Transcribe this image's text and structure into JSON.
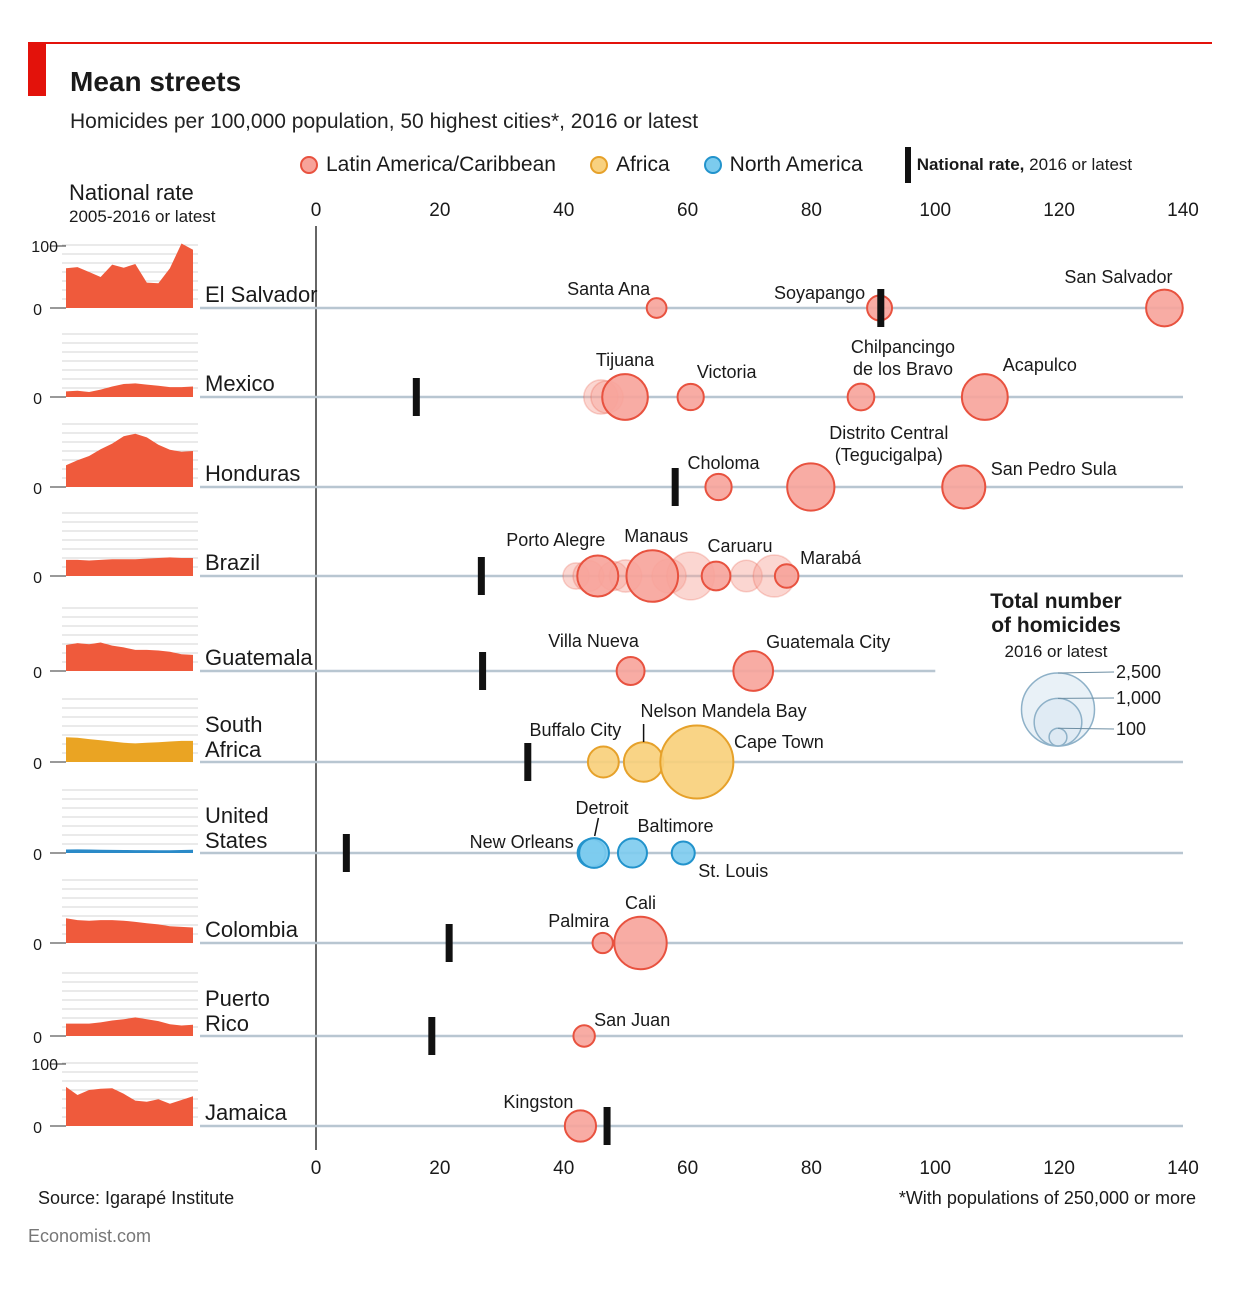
{
  "header": {
    "title": "Mean streets",
    "subtitle": "Homicides per 100,000 population, 50 highest cities*, 2016 or latest"
  },
  "legend": {
    "items": [
      {
        "label": "Latin America/Caribbean",
        "color": "#f26b5b"
      },
      {
        "label": "Africa",
        "color": "#f3b63a"
      },
      {
        "label": "North America",
        "color": "#3ab0e2"
      }
    ],
    "national_bold": "National rate,",
    "national_rest": " 2016 or latest"
  },
  "national_rate_header": {
    "title": "National rate",
    "years": "2005-2016 or latest"
  },
  "footer": {
    "source": "Source: Igarapé Institute",
    "footnote": "*With populations of 250,000 or more",
    "brand": "Economist.com"
  },
  "size_legend": {
    "title_line1": "Total number",
    "title_line2": "of homicides",
    "subtitle": "2016 or latest",
    "values": [
      {
        "label": "2,500",
        "homicides": 2500
      },
      {
        "label": "1,000",
        "homicides": 1000
      },
      {
        "label": "100",
        "homicides": 100
      }
    ]
  },
  "chart_data": {
    "type": "scatter",
    "x_ticks": [
      "0",
      "20",
      "40",
      "60",
      "80",
      "100",
      "120",
      "140"
    ],
    "xlim": [
      0,
      140
    ],
    "spark_ticks": [
      "100",
      "0"
    ],
    "colors": {
      "latam": "#f26b5b",
      "africa": "#f3b63a",
      "namerica": "#3ab0e2",
      "spark_latam": "#ef5a3c",
      "spark_africa": "#eaa423",
      "spark_na": "#2a8ac8"
    },
    "countries": [
      {
        "name": [
          "El Salvador"
        ],
        "region": "latam",
        "national_rate": 91.2,
        "spark_top_tick": "100",
        "spark": [
          64,
          66,
          58,
          50,
          70,
          65,
          71,
          41,
          40,
          64,
          104,
          94
        ],
        "cities": [
          {
            "name": "Santa Ana",
            "rate": 55,
            "homicides": 130
          },
          {
            "name": "Soyapango",
            "rate": 91,
            "homicides": 230
          },
          {
            "name": "San Salvador",
            "rate": 137,
            "homicides": 560
          }
        ]
      },
      {
        "name": [
          "Mexico"
        ],
        "region": "latam",
        "national_rate": 16.2,
        "spark": [
          9,
          10,
          8,
          12,
          17,
          21,
          22,
          20,
          18,
          16,
          16,
          17
        ],
        "cities": [
          {
            "name": "",
            "rate": 46,
            "homicides": 480,
            "faint": true
          },
          {
            "name": "",
            "rate": 47,
            "homicides": 420,
            "faint": true
          },
          {
            "name": "Tijuana",
            "rate": 49.9,
            "homicides": 910
          },
          {
            "name": "Victoria",
            "rate": 60.5,
            "homicides": 260
          },
          {
            "name": "Chilpancingo|de los Bravo",
            "rate": 88,
            "homicides": 270
          },
          {
            "name": "Acapulco",
            "rate": 108,
            "homicides": 920
          }
        ]
      },
      {
        "name": [
          "Honduras"
        ],
        "region": "latam",
        "national_rate": 58,
        "spark": [
          35,
          43,
          50,
          61,
          70,
          82,
          86,
          80,
          68,
          60,
          57,
          58
        ],
        "cities": [
          {
            "name": "Choloma",
            "rate": 65,
            "homicides": 260
          },
          {
            "name": "Distrito Central|(Tegucigalpa)",
            "rate": 79.9,
            "homicides": 980
          },
          {
            "name": "San Pedro Sula",
            "rate": 104.6,
            "homicides": 800
          }
        ]
      },
      {
        "name": [
          "Brazil"
        ],
        "region": "latam",
        "national_rate": 26.7,
        "spark": [
          26,
          26,
          25,
          26,
          27,
          27,
          27,
          28,
          29,
          30,
          29,
          29
        ],
        "cities": [
          {
            "name": "",
            "rate": 42,
            "homicides": 260,
            "faint": true
          },
          {
            "name": "",
            "rate": 44,
            "homicides": 380,
            "faint": true
          },
          {
            "name": "Porto Alegre",
            "rate": 45.5,
            "homicides": 720
          },
          {
            "name": "",
            "rate": 48,
            "homicides": 330,
            "faint": true
          },
          {
            "name": "",
            "rate": 50,
            "homicides": 420,
            "faint": true
          },
          {
            "name": "Manaus",
            "rate": 54.3,
            "homicides": 1190
          },
          {
            "name": "",
            "rate": 57,
            "homicides": 480,
            "faint": true
          },
          {
            "name": "",
            "rate": 60.5,
            "homicides": 1000,
            "faint": true
          },
          {
            "name": "Caruaru",
            "rate": 64.6,
            "homicides": 320
          },
          {
            "name": "",
            "rate": 69.5,
            "homicides": 400,
            "faint": true
          },
          {
            "name": "",
            "rate": 74,
            "homicides": 760,
            "faint": true
          },
          {
            "name": "Marabá",
            "rate": 76,
            "homicides": 200
          }
        ]
      },
      {
        "name": [
          "Guatemala"
        ],
        "region": "latam",
        "national_rate": 26.9,
        "spark": [
          42,
          45,
          43,
          46,
          41,
          38,
          34,
          34,
          33,
          31,
          27,
          26
        ],
        "cities": [
          {
            "name": "Villa Nueva",
            "rate": 50.8,
            "homicides": 300
          },
          {
            "name": "Guatemala City",
            "rate": 70.6,
            "homicides": 670
          }
        ]
      },
      {
        "name": [
          "South",
          "Africa"
        ],
        "region": "africa",
        "national_rate": 34.2,
        "spark": [
          40,
          39,
          37,
          35,
          33,
          31,
          30,
          31,
          32,
          33,
          34,
          34
        ],
        "cities": [
          {
            "name": "Buffalo City",
            "rate": 46.4,
            "homicides": 380
          },
          {
            "name": "Nelson Mandela Bay",
            "rate": 52.9,
            "homicides": 660
          },
          {
            "name": "Cape Town",
            "rate": 61.5,
            "homicides": 2500
          }
        ]
      },
      {
        "name": [
          "United",
          "States"
        ],
        "region": "namerica",
        "national_rate": 4.9,
        "spark": [
          5.6,
          5.8,
          5.7,
          5.4,
          5.0,
          4.8,
          4.7,
          4.7,
          4.5,
          4.4,
          4.9,
          5.3
        ],
        "cities": [
          {
            "name": "New Orleans",
            "rate": 44.5,
            "homicides": 300
          },
          {
            "name": "Detroit",
            "rate": 44.9,
            "homicides": 350
          },
          {
            "name": "Baltimore",
            "rate": 51.1,
            "homicides": 330
          },
          {
            "name": "St. Louis",
            "rate": 59.3,
            "homicides": 190
          }
        ]
      },
      {
        "name": [
          "Colombia"
        ],
        "region": "latam",
        "national_rate": 21.5,
        "spark": [
          40,
          37,
          36,
          37,
          37,
          36,
          34,
          32,
          30,
          27,
          26,
          25
        ],
        "cities": [
          {
            "name": "Palmira",
            "rate": 46.3,
            "homicides": 140
          },
          {
            "name": "Cali",
            "rate": 52.4,
            "homicides": 1230
          }
        ]
      },
      {
        "name": [
          "Puerto",
          "Rico"
        ],
        "region": "latam",
        "national_rate": 18.7,
        "spark": [
          20,
          20,
          20,
          22,
          25,
          27,
          30,
          27,
          24,
          19,
          17,
          18
        ],
        "cities": [
          {
            "name": "San Juan",
            "rate": 43.3,
            "homicides": 160
          }
        ]
      },
      {
        "name": [
          "Jamaica"
        ],
        "region": "latam",
        "national_rate": 47,
        "spark": [
          63,
          50,
          58,
          60,
          61,
          52,
          41,
          39,
          43,
          36,
          42,
          48
        ],
        "spark_top_tick": "100",
        "cities": [
          {
            "name": "Kingston",
            "rate": 42.7,
            "homicides": 390
          }
        ]
      }
    ]
  }
}
